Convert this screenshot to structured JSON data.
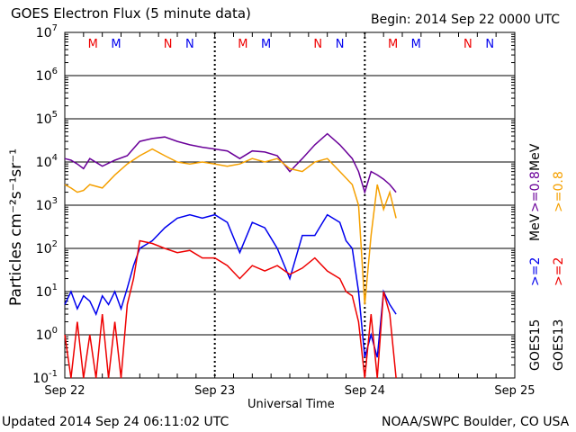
{
  "header": {
    "title": "GOES Electron Flux (5 minute data)",
    "begin": "Begin: 2014 Sep 22 0000 UTC"
  },
  "footer": {
    "updated": "Updated 2014 Sep 24 06:11:02 UTC",
    "credit": "NOAA/SWPC Boulder, CO USA"
  },
  "axes": {
    "ylabel": "Particles cm⁻²s⁻¹sr⁻¹",
    "xlabel": "Universal Time"
  },
  "right_labels": {
    "goes13": "GOES13",
    "goes15": "GOES15",
    "e2_13": ">=2",
    "e2_15": ">=2",
    "e08_13": ">=0.8",
    "e08_15": ">=0.8",
    "unit_a": "MeV",
    "unit_b": "MeV"
  },
  "colors": {
    "goes13_e2": "#ee0000",
    "goes15_e2": "#0000ee",
    "goes13_e08": "#f5a000",
    "goes15_e08": "#6a0099",
    "marker_M": "#ee0000",
    "marker_N": "#ee0000"
  },
  "chart_data": {
    "type": "line",
    "title": "GOES Electron Flux (5 minute data)",
    "xlabel": "Universal Time",
    "ylabel": "Particles cm-2s-1sr-1",
    "yscale": "log",
    "ylim": [
      0.1,
      10000000
    ],
    "xlim": [
      0,
      72
    ],
    "x_units": "hours since 2014 Sep 22 0000 UTC",
    "x_tick_labels": [
      "Sep 22",
      "Sep 23",
      "Sep 24",
      "Sep 25"
    ],
    "x_ticks": [
      0,
      24,
      48,
      72
    ],
    "y_tick_labels": [
      "10-1",
      "100",
      "101",
      "102",
      "103",
      "104",
      "105",
      "106",
      "107"
    ],
    "threshold": 1000,
    "grid": true,
    "markers": [
      {
        "x": 4.5,
        "label": "M",
        "color": "#ee0000"
      },
      {
        "x": 8.2,
        "label": "M",
        "color": "#0000ee"
      },
      {
        "x": 16.5,
        "label": "N",
        "color": "#ee0000"
      },
      {
        "x": 20.0,
        "label": "N",
        "color": "#0000ee"
      },
      {
        "x": 28.5,
        "label": "M",
        "color": "#ee0000"
      },
      {
        "x": 32.2,
        "label": "M",
        "color": "#0000ee"
      },
      {
        "x": 40.5,
        "label": "N",
        "color": "#ee0000"
      },
      {
        "x": 44.0,
        "label": "N",
        "color": "#0000ee"
      },
      {
        "x": 52.5,
        "label": "M",
        "color": "#ee0000"
      },
      {
        "x": 56.2,
        "label": "M",
        "color": "#0000ee"
      },
      {
        "x": 64.5,
        "label": "N",
        "color": "#ee0000"
      },
      {
        "x": 68.0,
        "label": "N",
        "color": "#0000ee"
      }
    ],
    "series": [
      {
        "name": "GOES15 >=0.8 MeV",
        "color": "#6a0099",
        "x": [
          0,
          1,
          2,
          3,
          4,
          6,
          8,
          10,
          12,
          14,
          16,
          18,
          20,
          22,
          24,
          26,
          28,
          30,
          32,
          34,
          36,
          38,
          40,
          42,
          44,
          46,
          47,
          48,
          49,
          50,
          51,
          52,
          53
        ],
        "y": [
          12000,
          11000,
          9000,
          7000,
          12000,
          8000,
          11000,
          14000,
          30000,
          35000,
          38000,
          30000,
          25000,
          22000,
          20000,
          18000,
          12000,
          18000,
          17000,
          14000,
          6000,
          12000,
          25000,
          45000,
          25000,
          12000,
          6000,
          2000,
          6000,
          5000,
          4000,
          3000,
          2000
        ]
      },
      {
        "name": "GOES13 >=0.8 MeV",
        "color": "#f5a000",
        "x": [
          0,
          1,
          2,
          3,
          4,
          6,
          8,
          10,
          12,
          14,
          16,
          18,
          20,
          22,
          24,
          26,
          28,
          30,
          32,
          34,
          36,
          38,
          40,
          42,
          44,
          46,
          47,
          48,
          49,
          50,
          51,
          52,
          53
        ],
        "y": [
          3000,
          2500,
          2000,
          2200,
          3000,
          2500,
          5000,
          9000,
          14000,
          20000,
          14000,
          10000,
          9000,
          10000,
          9000,
          8000,
          9000,
          12000,
          10000,
          12000,
          7000,
          6000,
          10000,
          12000,
          6000,
          3000,
          1000,
          5,
          200,
          3000,
          800,
          2000,
          500
        ]
      },
      {
        "name": "GOES15 >=2 MeV",
        "color": "#0000ee",
        "x": [
          0,
          1,
          2,
          3,
          4,
          5,
          6,
          7,
          8,
          9,
          10,
          11,
          12,
          14,
          16,
          18,
          20,
          22,
          24,
          26,
          28,
          30,
          32,
          34,
          36,
          38,
          40,
          42,
          44,
          45,
          46,
          47,
          48,
          49,
          50,
          51,
          52,
          53
        ],
        "y": [
          5,
          10,
          4,
          8,
          6,
          3,
          8,
          5,
          10,
          4,
          12,
          40,
          100,
          150,
          300,
          500,
          600,
          500,
          600,
          400,
          80,
          400,
          300,
          100,
          20,
          200,
          200,
          600,
          400,
          150,
          100,
          10,
          0.3,
          1,
          0.3,
          10,
          5,
          3
        ]
      },
      {
        "name": "GOES13 >=2 MeV",
        "color": "#ee0000",
        "x": [
          0,
          1,
          2,
          3,
          4,
          5,
          6,
          7,
          8,
          9,
          10,
          11,
          12,
          14,
          16,
          18,
          20,
          22,
          24,
          26,
          28,
          30,
          32,
          34,
          36,
          38,
          40,
          42,
          44,
          45,
          46,
          47,
          48,
          49,
          50,
          51,
          52,
          53
        ],
        "y": [
          1,
          0.1,
          2,
          0.1,
          1,
          0.1,
          3,
          0.1,
          2,
          0.1,
          5,
          20,
          150,
          130,
          100,
          80,
          90,
          60,
          60,
          40,
          20,
          40,
          30,
          40,
          25,
          35,
          60,
          30,
          20,
          10,
          8,
          2,
          0.1,
          3,
          0.1,
          10,
          3,
          0.1
        ]
      }
    ]
  }
}
